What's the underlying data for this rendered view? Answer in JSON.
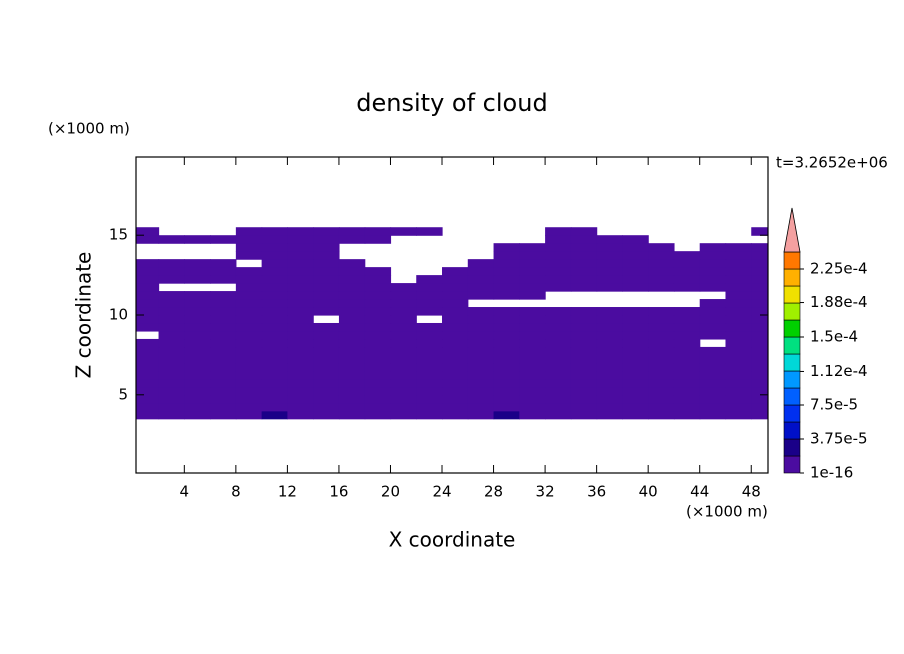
{
  "chart_data": {
    "type": "contourf",
    "title": "density of cloud",
    "xlabel": "X coordinate",
    "ylabel": "Z coordinate",
    "xunit": "(×1000 m)",
    "yunit": "(×1000 m)",
    "annotation": "t=3.2652e+06",
    "xlim": [
      0.25,
      49.3
    ],
    "ylim": [
      0.1,
      19.9
    ],
    "xticks": [
      4,
      8,
      12,
      16,
      20,
      24,
      28,
      32,
      36,
      40,
      44,
      48
    ],
    "yticks": [
      5,
      10,
      15
    ],
    "x": [
      1,
      3,
      5,
      7,
      9,
      11,
      13,
      15,
      17,
      19,
      21,
      23,
      25,
      27,
      29,
      31,
      33,
      35,
      37,
      39,
      41,
      43,
      45,
      47,
      49
    ],
    "z": [
      3.75,
      4.25,
      4.75,
      5.25,
      5.75,
      6.25,
      6.75,
      7.25,
      7.75,
      8.25,
      8.75,
      9.25,
      9.75,
      10.25,
      10.75,
      11.25,
      11.75,
      12.25,
      12.75,
      13.25,
      13.75,
      14.25,
      14.75,
      15.25,
      15.75
    ],
    "values": [
      [
        5e-06,
        5e-06,
        5e-06,
        5e-06,
        5e-06,
        2e-05,
        5e-06,
        5e-06,
        5e-06,
        5e-06,
        5e-06,
        5e-06,
        5e-06,
        5e-06,
        2e-05,
        5e-06,
        5e-06,
        5e-06,
        5e-06,
        5e-06,
        5e-06,
        5e-06,
        5e-06,
        5e-06,
        5e-06
      ],
      [
        5e-06,
        5e-06,
        5e-06,
        5e-06,
        5e-06,
        5e-06,
        5e-06,
        5e-06,
        5e-06,
        5e-06,
        5e-06,
        5e-06,
        5e-06,
        5e-06,
        5e-06,
        5e-06,
        5e-06,
        5e-06,
        5e-06,
        5e-06,
        5e-06,
        5e-06,
        5e-06,
        5e-06,
        5e-06
      ],
      [
        5e-06,
        5e-06,
        5e-06,
        5e-06,
        5e-06,
        5e-06,
        5e-06,
        5e-06,
        5e-06,
        5e-06,
        5e-06,
        5e-06,
        5e-06,
        5e-06,
        5e-06,
        5e-06,
        5e-06,
        5e-06,
        5e-06,
        5e-06,
        5e-06,
        5e-06,
        5e-06,
        5e-06,
        5e-06
      ],
      [
        5e-06,
        5e-06,
        5e-06,
        5e-06,
        5e-06,
        5e-06,
        5e-06,
        5e-06,
        5e-06,
        5e-06,
        5e-06,
        5e-06,
        5e-06,
        5e-06,
        5e-06,
        5e-06,
        5e-06,
        5e-06,
        5e-06,
        5e-06,
        5e-06,
        5e-06,
        5e-06,
        5e-06,
        5e-06
      ],
      [
        5e-06,
        5e-06,
        5e-06,
        5e-06,
        5e-06,
        5e-06,
        5e-06,
        5e-06,
        5e-06,
        5e-06,
        5e-06,
        5e-06,
        5e-06,
        5e-06,
        5e-06,
        5e-06,
        5e-06,
        5e-06,
        5e-06,
        5e-06,
        5e-06,
        5e-06,
        5e-06,
        5e-06,
        5e-06
      ],
      [
        5e-06,
        5e-06,
        5e-06,
        5e-06,
        5e-06,
        5e-06,
        5e-06,
        5e-06,
        5e-06,
        5e-06,
        5e-06,
        5e-06,
        5e-06,
        5e-06,
        5e-06,
        5e-06,
        5e-06,
        5e-06,
        5e-06,
        5e-06,
        5e-06,
        5e-06,
        5e-06,
        5e-06,
        5e-06
      ],
      [
        5e-06,
        5e-06,
        5e-06,
        5e-06,
        5e-06,
        5e-06,
        5e-06,
        5e-06,
        5e-06,
        5e-06,
        5e-06,
        5e-06,
        5e-06,
        5e-06,
        5e-06,
        5e-06,
        5e-06,
        5e-06,
        5e-06,
        5e-06,
        5e-06,
        5e-06,
        5e-06,
        5e-06,
        5e-06
      ],
      [
        5e-06,
        5e-06,
        5e-06,
        5e-06,
        5e-06,
        5e-06,
        5e-06,
        5e-06,
        5e-06,
        5e-06,
        5e-06,
        5e-06,
        5e-06,
        5e-06,
        5e-06,
        5e-06,
        5e-06,
        5e-06,
        5e-06,
        5e-06,
        5e-06,
        5e-06,
        5e-06,
        5e-06,
        5e-06
      ],
      [
        5e-06,
        5e-06,
        5e-06,
        5e-06,
        5e-06,
        5e-06,
        5e-06,
        5e-06,
        5e-06,
        5e-06,
        5e-06,
        5e-06,
        5e-06,
        5e-06,
        5e-06,
        5e-06,
        5e-06,
        5e-06,
        5e-06,
        5e-06,
        5e-06,
        5e-06,
        5e-06,
        5e-06,
        5e-06
      ],
      [
        5e-06,
        5e-06,
        5e-06,
        5e-06,
        5e-06,
        5e-06,
        5e-06,
        5e-06,
        5e-06,
        5e-06,
        5e-06,
        5e-06,
        5e-06,
        5e-06,
        5e-06,
        5e-06,
        5e-06,
        5e-06,
        5e-06,
        5e-06,
        5e-06,
        5e-06,
        0,
        5e-06,
        5e-06
      ],
      [
        0,
        5e-06,
        5e-06,
        5e-06,
        5e-06,
        5e-06,
        5e-06,
        5e-06,
        5e-06,
        5e-06,
        5e-06,
        5e-06,
        5e-06,
        5e-06,
        5e-06,
        5e-06,
        5e-06,
        5e-06,
        5e-06,
        5e-06,
        5e-06,
        5e-06,
        5e-06,
        5e-06,
        5e-06
      ],
      [
        5e-06,
        5e-06,
        5e-06,
        5e-06,
        5e-06,
        5e-06,
        5e-06,
        5e-06,
        5e-06,
        5e-06,
        5e-06,
        5e-06,
        5e-06,
        5e-06,
        5e-06,
        5e-06,
        5e-06,
        5e-06,
        5e-06,
        5e-06,
        5e-06,
        5e-06,
        5e-06,
        5e-06,
        5e-06
      ],
      [
        5e-06,
        5e-06,
        5e-06,
        5e-06,
        5e-06,
        5e-06,
        5e-06,
        0,
        5e-06,
        5e-06,
        5e-06,
        0,
        5e-06,
        5e-06,
        5e-06,
        5e-06,
        5e-06,
        5e-06,
        5e-06,
        5e-06,
        5e-06,
        5e-06,
        5e-06,
        5e-06,
        5e-06
      ],
      [
        5e-06,
        5e-06,
        5e-06,
        5e-06,
        5e-06,
        5e-06,
        5e-06,
        5e-06,
        5e-06,
        5e-06,
        5e-06,
        5e-06,
        5e-06,
        5e-06,
        5e-06,
        5e-06,
        5e-06,
        5e-06,
        5e-06,
        5e-06,
        5e-06,
        5e-06,
        5e-06,
        5e-06,
        5e-06
      ],
      [
        5e-06,
        5e-06,
        5e-06,
        5e-06,
        5e-06,
        5e-06,
        5e-06,
        5e-06,
        5e-06,
        5e-06,
        5e-06,
        5e-06,
        5e-06,
        0,
        0,
        0,
        0,
        0,
        0,
        0,
        0,
        0,
        5e-06,
        5e-06,
        5e-06
      ],
      [
        5e-06,
        5e-06,
        5e-06,
        5e-06,
        5e-06,
        5e-06,
        5e-06,
        5e-06,
        5e-06,
        5e-06,
        5e-06,
        5e-06,
        5e-06,
        5e-06,
        5e-06,
        5e-06,
        0,
        0,
        0,
        0,
        0,
        0,
        0,
        5e-06,
        5e-06
      ],
      [
        5e-06,
        0,
        0,
        0,
        5e-06,
        5e-06,
        5e-06,
        5e-06,
        5e-06,
        5e-06,
        5e-06,
        5e-06,
        5e-06,
        5e-06,
        5e-06,
        5e-06,
        5e-06,
        5e-06,
        5e-06,
        5e-06,
        5e-06,
        5e-06,
        5e-06,
        5e-06,
        5e-06
      ],
      [
        5e-06,
        5e-06,
        5e-06,
        5e-06,
        5e-06,
        5e-06,
        5e-06,
        5e-06,
        5e-06,
        5e-06,
        0,
        5e-06,
        5e-06,
        5e-06,
        5e-06,
        5e-06,
        5e-06,
        5e-06,
        5e-06,
        5e-06,
        5e-06,
        5e-06,
        5e-06,
        5e-06,
        5e-06
      ],
      [
        5e-06,
        5e-06,
        5e-06,
        5e-06,
        5e-06,
        5e-06,
        5e-06,
        5e-06,
        5e-06,
        5e-06,
        0,
        0,
        5e-06,
        5e-06,
        5e-06,
        5e-06,
        5e-06,
        5e-06,
        5e-06,
        5e-06,
        5e-06,
        5e-06,
        5e-06,
        5e-06,
        5e-06
      ],
      [
        5e-06,
        5e-06,
        5e-06,
        5e-06,
        0,
        5e-06,
        5e-06,
        5e-06,
        5e-06,
        0,
        0,
        0,
        0,
        5e-06,
        5e-06,
        5e-06,
        5e-06,
        5e-06,
        5e-06,
        5e-06,
        5e-06,
        5e-06,
        5e-06,
        5e-06,
        5e-06
      ],
      [
        0,
        0,
        0,
        0,
        5e-06,
        5e-06,
        5e-06,
        5e-06,
        0,
        0,
        0,
        0,
        0,
        0,
        5e-06,
        5e-06,
        5e-06,
        5e-06,
        5e-06,
        5e-06,
        5e-06,
        5e-06,
        5e-06,
        5e-06,
        5e-06
      ],
      [
        0,
        0,
        0,
        0,
        5e-06,
        5e-06,
        5e-06,
        5e-06,
        0,
        0,
        0,
        0,
        0,
        0,
        5e-06,
        5e-06,
        5e-06,
        5e-06,
        5e-06,
        5e-06,
        5e-06,
        0,
        5e-06,
        5e-06,
        5e-06
      ],
      [
        5e-06,
        5e-06,
        5e-06,
        5e-06,
        5e-06,
        5e-06,
        5e-06,
        5e-06,
        5e-06,
        5e-06,
        0,
        0,
        0,
        0,
        0,
        0,
        5e-06,
        5e-06,
        5e-06,
        5e-06,
        0,
        0,
        0,
        0,
        0
      ],
      [
        5e-06,
        0,
        0,
        0,
        5e-06,
        5e-06,
        5e-06,
        5e-06,
        5e-06,
        5e-06,
        5e-06,
        5e-06,
        0,
        0,
        0,
        0,
        5e-06,
        5e-06,
        0,
        0,
        0,
        0,
        0,
        0,
        5e-06
      ],
      [
        0,
        0,
        0,
        0,
        0,
        0,
        0,
        0,
        0,
        0,
        0,
        0,
        0,
        0,
        0,
        0,
        0,
        0,
        0,
        0,
        0,
        0,
        0,
        0,
        0
      ]
    ],
    "levels": [
      1e-16,
      1.875e-05,
      3.75e-05,
      5.625e-05,
      7.5e-05,
      9.375e-05,
      0.0001125,
      0.00013125,
      0.00015,
      0.00016875,
      0.0001875,
      0.00020625,
      0.000225,
      0.00024375
    ],
    "colors": [
      "#4b0ca0",
      "#1a0088",
      "#0010c8",
      "#0030f0",
      "#0060ff",
      "#0098ff",
      "#00d8d8",
      "#00e080",
      "#00d000",
      "#a0f000",
      "#f0e000",
      "#ffb000",
      "#ff7800",
      "#ff2000"
    ],
    "extend_color": "#f4a0a0",
    "colorbar_ticks": [
      1e-16,
      {
        "value": 3.75e-05,
        "label": "3.75e-5"
      },
      {
        "value": 7.5e-05,
        "label": "7.5e-5"
      },
      {
        "value": 0.000112,
        "label": "1.12e-4"
      },
      {
        "value": 0.00015,
        "label": "1.5e-4"
      },
      {
        "value": 0.000188,
        "label": "1.88e-4"
      },
      {
        "value": 0.000225,
        "label": "2.25e-4"
      }
    ]
  }
}
